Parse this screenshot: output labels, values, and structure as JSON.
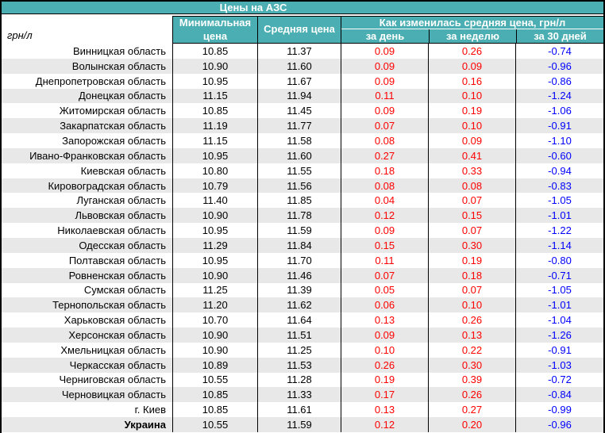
{
  "title": "Цены на АЗС",
  "unit_label": "грн/л",
  "columns": {
    "min_price": "Минимальная цена",
    "avg_price": "Средняя цена",
    "change_group": "Как изменилась средняя цена, грн/л",
    "per_day": "за день",
    "per_week": "за неделю",
    "per_30_days": "за 30 дней"
  },
  "colors": {
    "header_bg": "#4BAEB2",
    "header_text": "#FFFFFF",
    "increase": "#FF0000",
    "decrease": "#0000FF",
    "stripe": "#E8E8E8"
  },
  "rows": [
    {
      "name": "Винницкая область",
      "min": "10.85",
      "avg": "11.37",
      "day": "0.09",
      "week": "0.26",
      "month": "-0.74"
    },
    {
      "name": "Волынская область",
      "min": "10.90",
      "avg": "11.60",
      "day": "0.09",
      "week": "0.09",
      "month": "-0.96"
    },
    {
      "name": "Днепропетровская область",
      "min": "10.95",
      "avg": "11.67",
      "day": "0.09",
      "week": "0.16",
      "month": "-0.86"
    },
    {
      "name": "Донецкая область",
      "min": "11.15",
      "avg": "11.94",
      "day": "0.11",
      "week": "0.10",
      "month": "-1.24"
    },
    {
      "name": "Житомирская область",
      "min": "10.85",
      "avg": "11.45",
      "day": "0.09",
      "week": "0.19",
      "month": "-1.06"
    },
    {
      "name": "Закарпатская область",
      "min": "11.19",
      "avg": "11.77",
      "day": "0.07",
      "week": "0.10",
      "month": "-0.91"
    },
    {
      "name": "Запорожская область",
      "min": "11.15",
      "avg": "11.58",
      "day": "0.08",
      "week": "0.09",
      "month": "-1.10"
    },
    {
      "name": "Ивано-Франковская область",
      "min": "10.95",
      "avg": "11.60",
      "day": "0.27",
      "week": "0.41",
      "month": "-0.60"
    },
    {
      "name": "Киевская область",
      "min": "10.80",
      "avg": "11.55",
      "day": "0.18",
      "week": "0.33",
      "month": "-0.94"
    },
    {
      "name": "Кировоградская область",
      "min": "10.79",
      "avg": "11.56",
      "day": "0.08",
      "week": "0.08",
      "month": "-0.83"
    },
    {
      "name": "Луганская область",
      "min": "11.40",
      "avg": "11.85",
      "day": "0.04",
      "week": "0.07",
      "month": "-1.05"
    },
    {
      "name": "Львовская область",
      "min": "10.90",
      "avg": "11.78",
      "day": "0.12",
      "week": "0.15",
      "month": "-1.01"
    },
    {
      "name": "Николаевская область",
      "min": "10.95",
      "avg": "11.59",
      "day": "0.09",
      "week": "0.07",
      "month": "-1.22"
    },
    {
      "name": "Одесская область",
      "min": "11.29",
      "avg": "11.84",
      "day": "0.15",
      "week": "0.30",
      "month": "-1.14"
    },
    {
      "name": "Полтавская область",
      "min": "10.95",
      "avg": "11.70",
      "day": "0.11",
      "week": "0.19",
      "month": "-0.80"
    },
    {
      "name": "Ровненская область",
      "min": "10.90",
      "avg": "11.46",
      "day": "0.07",
      "week": "0.18",
      "month": "-0.71"
    },
    {
      "name": "Сумская область",
      "min": "11.25",
      "avg": "11.39",
      "day": "0.05",
      "week": "0.07",
      "month": "-1.05"
    },
    {
      "name": "Тернопольская область",
      "min": "11.20",
      "avg": "11.62",
      "day": "0.06",
      "week": "0.10",
      "month": "-1.01"
    },
    {
      "name": "Харьковская область",
      "min": "10.70",
      "avg": "11.64",
      "day": "0.13",
      "week": "0.26",
      "month": "-1.04"
    },
    {
      "name": "Херсонская область",
      "min": "10.90",
      "avg": "11.51",
      "day": "0.09",
      "week": "0.13",
      "month": "-1.26"
    },
    {
      "name": "Хмельницкая область",
      "min": "10.90",
      "avg": "11.25",
      "day": "0.10",
      "week": "0.22",
      "month": "-0.91"
    },
    {
      "name": "Черкасская область",
      "min": "10.89",
      "avg": "11.53",
      "day": "0.26",
      "week": "0.30",
      "month": "-1.03"
    },
    {
      "name": "Черниговская область",
      "min": "10.55",
      "avg": "11.28",
      "day": "0.19",
      "week": "0.39",
      "month": "-0.72"
    },
    {
      "name": "Черновицкая область",
      "min": "10.85",
      "avg": "11.33",
      "day": "0.17",
      "week": "0.26",
      "month": "-0.84"
    },
    {
      "name": "г. Киев",
      "min": "10.85",
      "avg": "11.61",
      "day": "0.13",
      "week": "0.27",
      "month": "-0.99"
    },
    {
      "name": "Украина",
      "min": "10.55",
      "avg": "11.59",
      "day": "0.12",
      "week": "0.20",
      "month": "-0.96",
      "bold": true
    }
  ]
}
